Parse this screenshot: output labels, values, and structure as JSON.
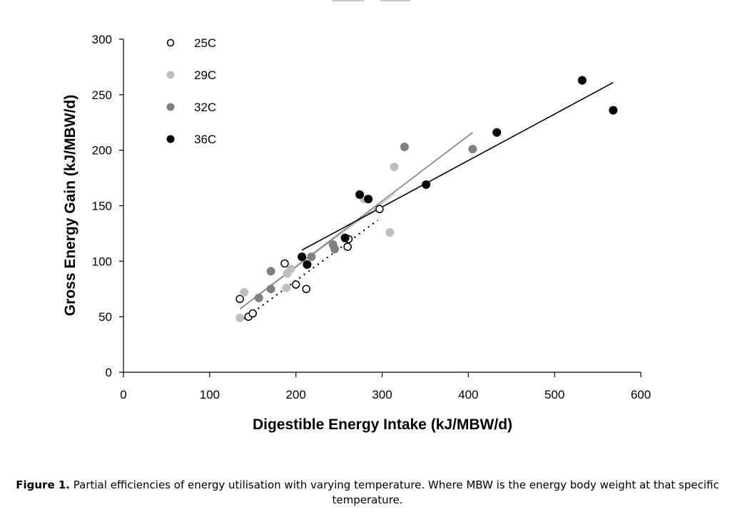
{
  "chart_data": {
    "type": "scatter",
    "title": "",
    "xlabel": "Digestible Energy Intake (kJ/MBW/d)",
    "ylabel": "Gross Energy Gain (kJ/MBW/d)",
    "xlim": [
      0,
      600
    ],
    "ylim": [
      0,
      300
    ],
    "xticks": [
      0,
      100,
      200,
      300,
      400,
      500,
      600
    ],
    "yticks": [
      0,
      50,
      100,
      150,
      200,
      250,
      300
    ],
    "grid": false,
    "legend_position": "top-left",
    "series": [
      {
        "name": "25C",
        "marker": "open-circle",
        "color": "#000000",
        "points": [
          [
            135,
            66
          ],
          [
            145,
            50
          ],
          [
            150,
            53
          ],
          [
            187,
            98
          ],
          [
            200,
            79
          ],
          [
            212,
            75
          ],
          [
            260,
            113
          ],
          [
            261,
            120
          ],
          [
            297,
            147
          ]
        ],
        "trendline": {
          "style": "dotted",
          "color": "#000000",
          "x": [
            140,
            295
          ],
          "y": [
            48,
            137
          ]
        }
      },
      {
        "name": "29C",
        "marker": "filled-circle",
        "color": "#bfbfbf",
        "points": [
          [
            135,
            49
          ],
          [
            140,
            72
          ],
          [
            189,
            76
          ],
          [
            190,
            89
          ],
          [
            194,
            93
          ],
          [
            279,
            156
          ],
          [
            309,
            126
          ],
          [
            314,
            185
          ]
        ],
        "trendline": {
          "style": "solid",
          "color": "#bfbfbf",
          "x": [
            135,
            315
          ],
          "y": [
            57,
            161
          ]
        }
      },
      {
        "name": "32C",
        "marker": "filled-circle",
        "color": "#808080",
        "points": [
          [
            157,
            67
          ],
          [
            171,
            75
          ],
          [
            171,
            91
          ],
          [
            218,
            104
          ],
          [
            243,
            115
          ],
          [
            245,
            111
          ],
          [
            326,
            203
          ],
          [
            405,
            201
          ]
        ],
        "trendline": {
          "style": "solid",
          "color": "#808080",
          "x": [
            135,
            405
          ],
          "y": [
            57,
            216
          ]
        }
      },
      {
        "name": "36C",
        "marker": "filled-circle",
        "color": "#000000",
        "points": [
          [
            207,
            104
          ],
          [
            213,
            97
          ],
          [
            257,
            121
          ],
          [
            274,
            160
          ],
          [
            284,
            156
          ],
          [
            351,
            169
          ],
          [
            433,
            216
          ],
          [
            532,
            263
          ],
          [
            568,
            236
          ]
        ],
        "trendline": {
          "style": "solid",
          "color": "#000000",
          "x": [
            207,
            568
          ],
          "y": [
            110,
            261
          ]
        }
      }
    ]
  },
  "caption": {
    "label": "Figure 1.",
    "text": " Partial efficiencies of energy utilisation with varying temperature. Where MBW is the energy body weight at that specific temperature."
  }
}
